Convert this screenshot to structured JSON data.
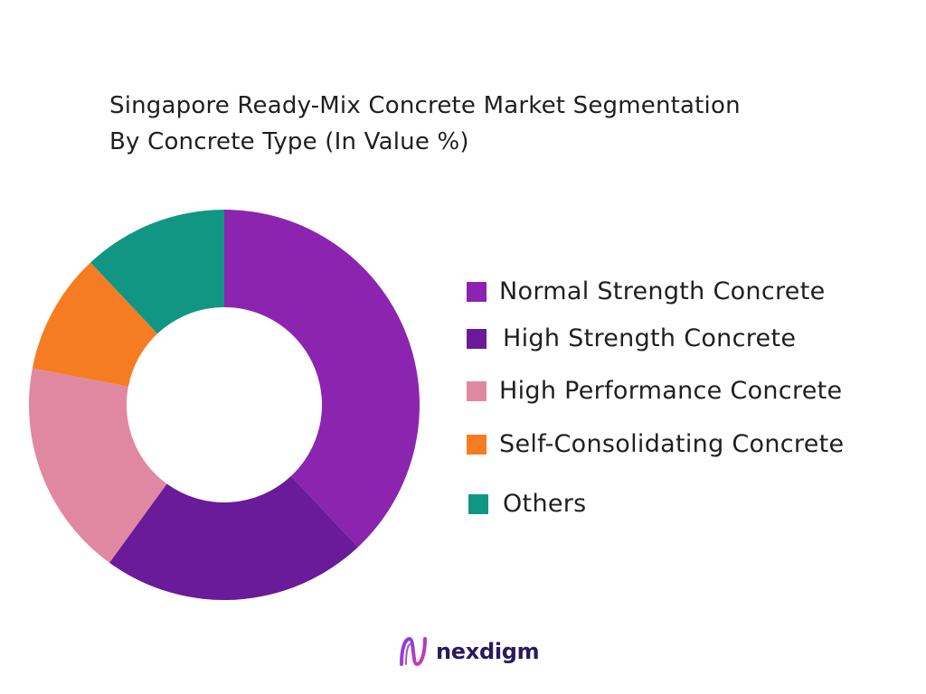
{
  "chart_data": {
    "type": "pie",
    "donut": true,
    "title": [
      "Singapore Ready-Mix Concrete Market Segmentation",
      "By Concrete Type (In Value %)"
    ],
    "series": [
      {
        "name": "Normal Strength Concrete",
        "value": 38,
        "color": "#8B25B0"
      },
      {
        "name": "High Strength Concrete",
        "value": 22,
        "color": "#6A1B9A"
      },
      {
        "name": "High Performance Concrete",
        "value": 18,
        "color": "#E088A2"
      },
      {
        "name": "Self-Consolidating Concrete",
        "value": 10,
        "color": "#F57C22"
      },
      {
        "name": "Others",
        "value": 12,
        "color": "#129684"
      }
    ],
    "legend_placement": "right"
  },
  "brand": {
    "name": "nexdigm",
    "logo_icon": "nexdigm-logo-icon"
  }
}
